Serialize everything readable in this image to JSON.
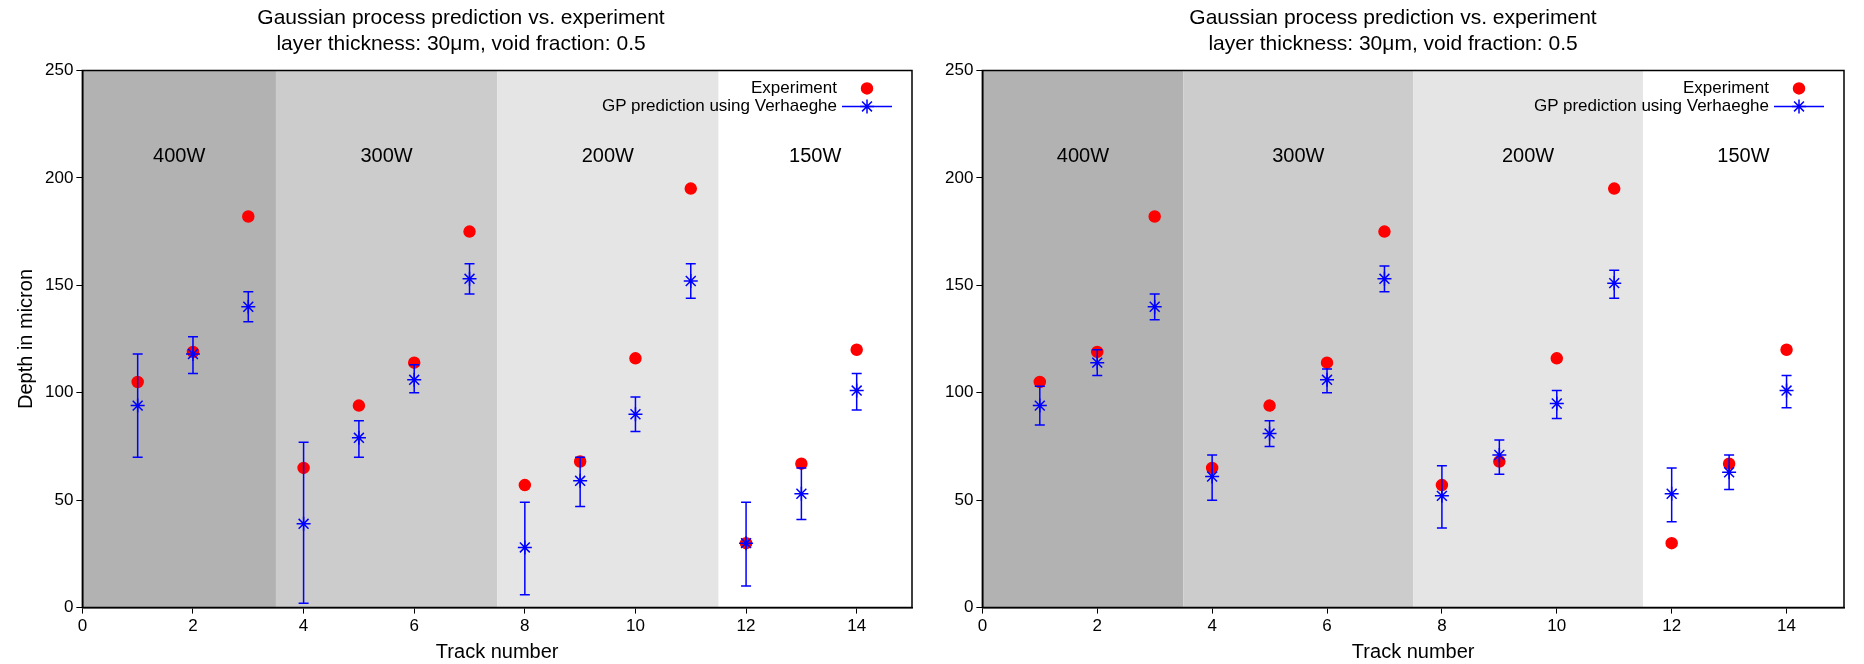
{
  "chart_data": [
    {
      "type": "scatter",
      "title": "Gaussian process prediction vs. experiment",
      "subtitle": "layer thickness: 30μm, void fraction: 0.5",
      "xlabel": "Track number",
      "ylabel": "Depth in micron",
      "x": [
        1,
        2,
        3,
        4,
        5,
        6,
        7,
        8,
        9,
        10,
        11,
        12,
        13,
        14
      ],
      "xlim": [
        0,
        15
      ],
      "xticks": [
        0,
        2,
        4,
        6,
        8,
        10,
        12,
        14
      ],
      "ylim": [
        0,
        250
      ],
      "yticks": [
        0,
        50,
        100,
        150,
        200,
        250
      ],
      "grid": false,
      "legend": "top right",
      "bands": [
        {
          "axis": "x",
          "from": 0,
          "to": 3.5,
          "label": "400W",
          "color": "#b2b2b2"
        },
        {
          "axis": "x",
          "from": 3.5,
          "to": 7.5,
          "label": "300W",
          "color": "#cccccc"
        },
        {
          "axis": "x",
          "from": 7.5,
          "to": 11.5,
          "label": "200W",
          "color": "#e5e5e5"
        }
      ],
      "annotations": [
        "150W"
      ],
      "series": [
        {
          "name": "Experiment",
          "color": "#ff0000",
          "marker": "circle",
          "values": [
            105,
            119,
            182,
            65,
            94,
            114,
            175,
            57,
            68,
            116,
            195,
            30,
            67,
            120
          ]
        },
        {
          "name": "GP prediction using Verhaeghe",
          "color": "#0000ff",
          "marker": "cross",
          "values": [
            94,
            118,
            140,
            39,
            79,
            106,
            153,
            28,
            59,
            90,
            152,
            30,
            53,
            101
          ],
          "errors": [
            [
              70,
              118
            ],
            [
              109,
              126
            ],
            [
              133,
              147
            ],
            [
              2,
              77
            ],
            [
              70,
              87
            ],
            [
              100,
              113
            ],
            [
              146,
              160
            ],
            [
              6,
              49
            ],
            [
              47,
              70
            ],
            [
              82,
              98
            ],
            [
              144,
              160
            ],
            [
              10,
              49
            ],
            [
              41,
              65
            ],
            [
              92,
              109
            ]
          ]
        }
      ]
    },
    {
      "type": "scatter",
      "title": "Gaussian process prediction vs. experiment",
      "subtitle": "layer thickness: 30μm, void fraction: 0.5",
      "xlabel": "Track number",
      "x": [
        1,
        2,
        3,
        4,
        5,
        6,
        7,
        8,
        9,
        10,
        11,
        12,
        13,
        14
      ],
      "xlim": [
        0,
        15
      ],
      "xticks": [
        0,
        2,
        4,
        6,
        8,
        10,
        12,
        14
      ],
      "ylim": [
        0,
        250
      ],
      "yticks": [
        0,
        50,
        100,
        150,
        200,
        250
      ],
      "grid": false,
      "legend": "top right",
      "bands": [
        {
          "axis": "x",
          "from": 0,
          "to": 3.5,
          "label": "400W",
          "color": "#b2b2b2"
        },
        {
          "axis": "x",
          "from": 3.5,
          "to": 7.5,
          "label": "300W",
          "color": "#cccccc"
        },
        {
          "axis": "x",
          "from": 7.5,
          "to": 11.5,
          "label": "200W",
          "color": "#e5e5e5"
        }
      ],
      "annotations": [
        "150W"
      ],
      "series": [
        {
          "name": "Experiment",
          "color": "#ff0000",
          "marker": "circle",
          "values": [
            105,
            119,
            182,
            65,
            94,
            114,
            175,
            57,
            68,
            116,
            195,
            30,
            67,
            120
          ]
        },
        {
          "name": "GP prediction using Verhaeghe",
          "color": "#0000ff",
          "marker": "cross",
          "values": [
            94,
            114,
            140,
            61,
            81,
            106,
            153,
            52,
            71,
            95,
            151,
            53,
            63,
            101
          ],
          "errors": [
            [
              85,
              103
            ],
            [
              108,
              120
            ],
            [
              134,
              146
            ],
            [
              50,
              71
            ],
            [
              75,
              87
            ],
            [
              100,
              111
            ],
            [
              147,
              159
            ],
            [
              37,
              66
            ],
            [
              62,
              78
            ],
            [
              88,
              101
            ],
            [
              144,
              157
            ],
            [
              40,
              65
            ],
            [
              55,
              71
            ],
            [
              93,
              108
            ]
          ]
        }
      ]
    }
  ]
}
